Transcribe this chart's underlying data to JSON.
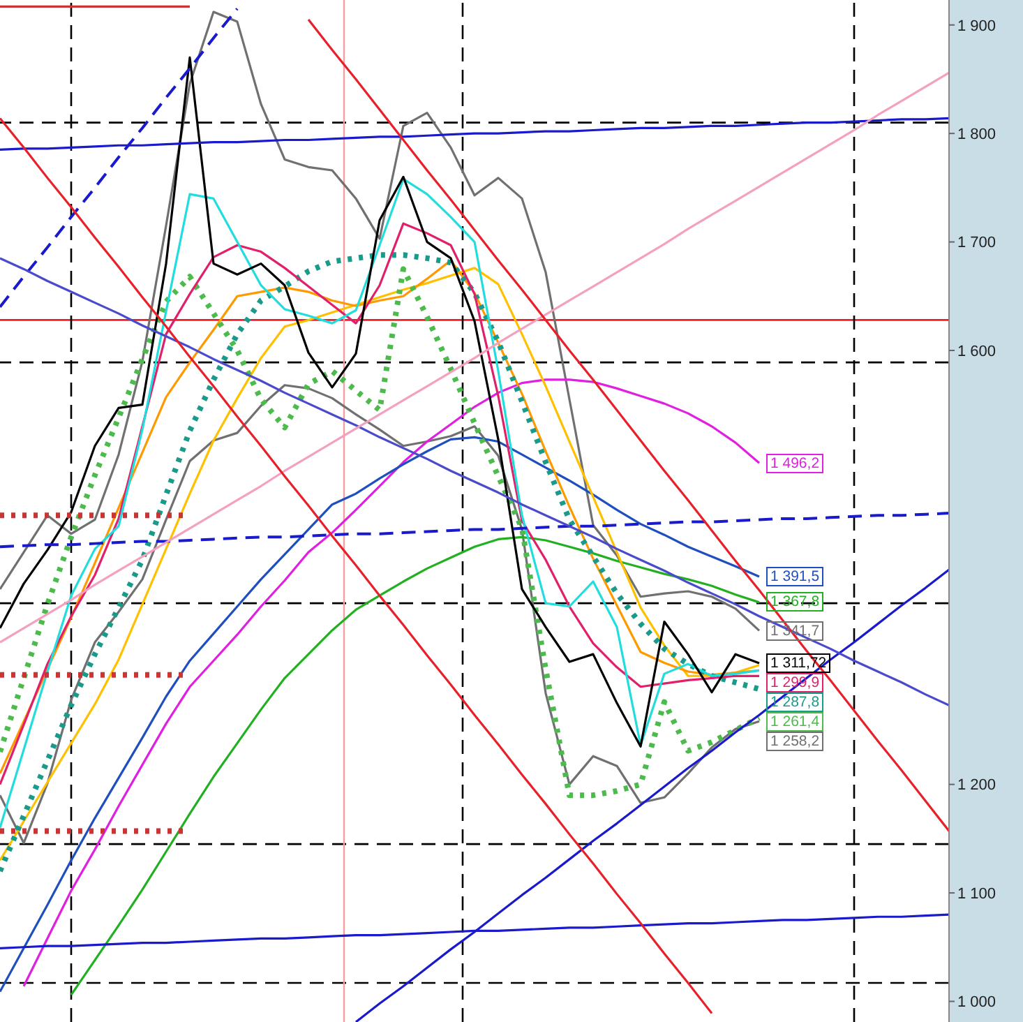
{
  "chart_data": {
    "type": "line",
    "categories": [
      null,
      null,
      null,
      null,
      null,
      null,
      null,
      null,
      null,
      null,
      null,
      null,
      null,
      null,
      null,
      null,
      null,
      null,
      null,
      null,
      null,
      null,
      null,
      null,
      null,
      null,
      null,
      null,
      null,
      null,
      null,
      null,
      null,
      null,
      null,
      null,
      null,
      null,
      null,
      null,
      null
    ],
    "ylim": [
      981,
      1923
    ],
    "yticks": [
      {
        "value": 1000,
        "label": "1 000"
      },
      {
        "value": 1100,
        "label": "1 100"
      },
      {
        "value": 1200,
        "label": "1 200"
      },
      {
        "value": 1600,
        "label": "1 600"
      },
      {
        "value": 1700,
        "label": "1 700"
      },
      {
        "value": 1800,
        "label": "1 800"
      },
      {
        "value": 1900,
        "label": "1 900"
      }
    ],
    "tick_labels": "y",
    "series": [
      {
        "color": "#707070",
        "values": [
          1380,
          1414,
          1448,
          1431,
          1444,
          1504,
          1590,
          1715,
          1846,
          1912,
          1903,
          1827,
          1776,
          1769,
          1766,
          1740,
          1703,
          1807,
          1819,
          1787,
          1743,
          1759,
          1740,
          1672,
          1555,
          1439,
          1411,
          1373,
          1376,
          1378,
          1373,
          1362,
          1341.7,
          null,
          null,
          null,
          null,
          null,
          null,
          null,
          null
        ],
        "value_labels": [
          null,
          null,
          null,
          null,
          null,
          null,
          null,
          null,
          null,
          null,
          null,
          null,
          null,
          null,
          null,
          null,
          null,
          null,
          null,
          null,
          null,
          null,
          null,
          null,
          null,
          null,
          null,
          null,
          null,
          null,
          null,
          null,
          "1 341,7",
          null,
          null,
          null,
          null,
          null,
          null,
          null,
          null
        ]
      },
      {
        "color": "#707070",
        "values": [
          1190,
          1146,
          1201,
          1278,
          1331,
          1359,
          1389,
          1444,
          1498,
          1517,
          1524,
          1549,
          1568,
          1565,
          1556,
          1541,
          1527,
          1512,
          1516,
          1521,
          1530,
          1503,
          1435,
          1284,
          1200,
          1226,
          1217,
          1183,
          1188,
          1210,
          1234,
          1251,
          1258.2,
          null,
          null,
          null,
          null,
          null,
          null,
          null,
          null
        ],
        "value_labels": [
          null,
          null,
          null,
          null,
          null,
          null,
          null,
          null,
          null,
          null,
          null,
          null,
          null,
          null,
          null,
          null,
          null,
          null,
          null,
          null,
          null,
          null,
          null,
          null,
          null,
          null,
          null,
          null,
          null,
          null,
          null,
          null,
          "1 258,2",
          null,
          null,
          null,
          null,
          null,
          null,
          null,
          null
        ]
      },
      {
        "color": "#e020e0",
        "values": [
          null,
          1014,
          1058,
          1102,
          1140,
          1180,
          1218,
          1256,
          1290,
          1314,
          1338,
          1364,
          1388,
          1414,
          1432,
          1453,
          1475,
          1497,
          1516,
          1532,
          1548,
          1561,
          1570,
          1573,
          1573,
          1571,
          1565,
          1558,
          1551,
          1542,
          1530,
          1515,
          1496.2,
          null,
          null,
          null,
          null,
          null,
          null,
          null,
          null
        ],
        "value_labels": [
          null,
          null,
          null,
          null,
          null,
          null,
          null,
          null,
          null,
          null,
          null,
          null,
          null,
          null,
          null,
          null,
          null,
          null,
          null,
          null,
          null,
          null,
          null,
          null,
          null,
          null,
          null,
          null,
          null,
          null,
          null,
          null,
          "1 496,2",
          null,
          null,
          null,
          null,
          null,
          null,
          null,
          null
        ]
      },
      {
        "color": "#1f4fbf",
        "values": [
          1009,
          1049,
          1089,
          1130,
          1169,
          1206,
          1243,
          1281,
          1314,
          1339,
          1364,
          1389,
          1412,
          1435,
          1458,
          1468,
          1482,
          1495,
          1507,
          1518,
          1520,
          1516,
          1504,
          1492,
          1480,
          1467,
          1453,
          1440,
          1430,
          1419,
          1410,
          1401,
          1391.5,
          null,
          null,
          null,
          null,
          null,
          null,
          null,
          null
        ],
        "value_labels": [
          null,
          null,
          null,
          null,
          null,
          null,
          null,
          null,
          null,
          null,
          null,
          null,
          null,
          null,
          null,
          null,
          null,
          null,
          null,
          null,
          null,
          null,
          null,
          null,
          null,
          null,
          null,
          null,
          null,
          null,
          null,
          null,
          "1 391,5",
          null,
          null,
          null,
          null,
          null,
          null,
          null,
          null
        ]
      },
      {
        "color": "#22b022",
        "values": [
          null,
          null,
          null,
          1006,
          1038,
          1070,
          1103,
          1138,
          1173,
          1207,
          1238,
          1269,
          1298,
          1320,
          1342,
          1361,
          1374,
          1387,
          1399,
          1409,
          1419,
          1426,
          1428,
          1425,
          1419,
          1413,
          1406,
          1400,
          1394,
          1389,
          1383,
          1375,
          1367.8,
          null,
          null,
          null,
          null,
          null,
          null,
          null,
          null
        ],
        "value_labels": [
          null,
          null,
          null,
          null,
          null,
          null,
          null,
          null,
          null,
          null,
          null,
          null,
          null,
          null,
          null,
          null,
          null,
          null,
          null,
          null,
          null,
          null,
          null,
          null,
          null,
          null,
          null,
          null,
          null,
          null,
          null,
          null,
          "1 367,8",
          null,
          null,
          null,
          null,
          null,
          null,
          null,
          null
        ]
      },
      {
        "color": "#ffc000",
        "values": [
          1130,
          1166,
          1202,
          1238,
          1274,
          1315,
          1366,
          1417,
          1468,
          1517,
          1556,
          1593,
          1622,
          1628,
          1635,
          1642,
          1649,
          1656,
          1662,
          1669,
          1676,
          1661,
          1615,
          1567,
          1516,
          1465,
          1414,
          1363,
          1328,
          1300,
          1300,
          1303,
          1310,
          null,
          null,
          null,
          null,
          null,
          null,
          null,
          null
        ]
      },
      {
        "color": "#ff9900",
        "values": [
          1210,
          1258,
          1306,
          1354,
          1404,
          1455,
          1506,
          1557,
          1589,
          1619,
          1650,
          1654,
          1658,
          1654,
          1646,
          1641,
          1646,
          1650,
          1666,
          1683,
          1653,
          1607,
          1560,
          1507,
          1456,
          1408,
          1365,
          1322,
          1312,
          1304,
          1301,
          1303,
          1305,
          null,
          null,
          null,
          null,
          null,
          null,
          null,
          null
        ]
      },
      {
        "color": "#1a9a8a",
        "line_style": "dotted",
        "values": [
          1120,
          1171,
          1222,
          1273,
          1320,
          1363,
          1407,
          1467,
          1526,
          1573,
          1615,
          1646,
          1659,
          1673,
          1682,
          1685,
          1688,
          1688,
          1685,
          1681,
          1653,
          1608,
          1553,
          1497,
          1444,
          1410,
          1376,
          1348,
          1325,
          1311,
          1300,
          1294,
          1287.8,
          null,
          null,
          null,
          null,
          null,
          null,
          null,
          null
        ],
        "value_labels": [
          null,
          null,
          null,
          null,
          null,
          null,
          null,
          null,
          null,
          null,
          null,
          null,
          null,
          null,
          null,
          null,
          null,
          null,
          null,
          null,
          null,
          null,
          null,
          null,
          null,
          null,
          null,
          null,
          null,
          null,
          null,
          null,
          "1 287,8",
          null,
          null,
          null,
          null,
          null,
          null,
          null,
          null
        ]
      },
      {
        "color": "#4cbb4c",
        "line_style": "dotted",
        "values": [
          1230,
          1298,
          1366,
          1428,
          1485,
          1538,
          1592,
          1645,
          1668,
          1634,
          1600,
          1555,
          1529,
          1569,
          1581,
          1563,
          1545,
          1675,
          1631,
          1583,
          1533,
          1484,
          1436,
          1306,
          1190,
          1190,
          1194,
          1200,
          1276,
          1231,
          1239,
          1250,
          1261.4,
          null,
          null,
          null,
          null,
          null,
          null,
          null,
          null
        ],
        "value_labels": [
          null,
          null,
          null,
          null,
          null,
          null,
          null,
          null,
          null,
          null,
          null,
          null,
          null,
          null,
          null,
          null,
          null,
          null,
          null,
          null,
          null,
          null,
          null,
          null,
          null,
          null,
          null,
          null,
          null,
          null,
          null,
          null,
          "1 261,4",
          null,
          null,
          null,
          null,
          null,
          null,
          null,
          null
        ]
      },
      {
        "color": "#e0206a",
        "values": [
          1200,
          1255,
          1311,
          1355,
          1393,
          1445,
          1530,
          1615,
          1652,
          1686,
          1697,
          1691,
          1676,
          1659,
          1642,
          1625,
          1660,
          1717,
          1708,
          1697,
          1652,
          1558,
          1443,
          1407,
          1364,
          1330,
          1308,
          1290,
          1293,
          1296,
          1298,
          1300,
          1299.9,
          null,
          null,
          null,
          null,
          null,
          null,
          null,
          null
        ],
        "value_labels": [
          null,
          null,
          null,
          null,
          null,
          null,
          null,
          null,
          null,
          null,
          null,
          null,
          null,
          null,
          null,
          null,
          null,
          null,
          null,
          null,
          null,
          null,
          null,
          null,
          null,
          null,
          null,
          null,
          null,
          null,
          null,
          null,
          "1 299,9",
          null,
          null,
          null,
          null,
          null,
          null,
          null,
          null
        ]
      },
      {
        "color": "#22dddd",
        "values": [
          1160,
          1232,
          1304,
          1374,
          1417,
          1438,
          1527,
          1636,
          1744,
          1740,
          1700,
          1660,
          1638,
          1632,
          1625,
          1637,
          1697,
          1758,
          1744,
          1723,
          1700,
          1581,
          1448,
          1367,
          1364,
          1387,
          1345,
          1236,
          1302,
          1311,
          1300,
          1302,
          1305,
          null,
          null,
          null,
          null,
          null,
          null,
          null,
          null
        ]
      },
      {
        "color": "#000000",
        "values": [
          1344,
          1385,
          1416,
          1451,
          1512,
          1547,
          1550,
          1680,
          1870,
          1680,
          1670,
          1680,
          1660,
          1598,
          1566,
          1597,
          1720,
          1760,
          1700,
          1685,
          1627,
          1518,
          1380,
          1345,
          1313,
          1320,
          1275,
          1235,
          1350,
          1320,
          1285,
          1320,
          1311.72,
          null,
          null,
          null,
          null,
          null,
          null,
          null,
          null
        ],
        "value_labels": [
          null,
          null,
          null,
          null,
          null,
          null,
          null,
          null,
          null,
          null,
          null,
          null,
          null,
          null,
          null,
          null,
          null,
          null,
          null,
          null,
          null,
          null,
          null,
          null,
          null,
          null,
          null,
          null,
          null,
          null,
          null,
          null,
          "1 311,72",
          null,
          null,
          null,
          null,
          null,
          null,
          null,
          null
        ]
      },
      {
        "color": "#1a1acd",
        "values": [
          1785,
          1786,
          1786,
          1787,
          1788,
          1789,
          1789,
          1790,
          1791,
          1792,
          1792,
          1793,
          1794,
          1794,
          1795,
          1796,
          1797,
          1797,
          1798,
          1799,
          1800,
          1800,
          1801,
          1802,
          1802,
          1803,
          1804,
          1805,
          1805,
          1806,
          1807,
          1807,
          1808,
          1809,
          1810,
          1810,
          1811,
          1812,
          1813,
          1813,
          1814
        ]
      },
      {
        "color": "#1a1acd",
        "line_style": "dashed",
        "values": [
          1419,
          1420,
          1421,
          1421,
          1422,
          1423,
          1424,
          1424,
          1425,
          1426,
          1427,
          1428,
          1428,
          1429,
          1430,
          1431,
          1431,
          1432,
          1433,
          1434,
          1435,
          1435,
          1436,
          1437,
          1438,
          1438,
          1439,
          1440,
          1441,
          1442,
          1442,
          1443,
          1444,
          1445,
          1445,
          1446,
          1447,
          1448,
          1448,
          1449,
          1450
        ]
      },
      {
        "color": "#1a1acd",
        "values": [
          1049,
          1050,
          1051,
          1051,
          1052,
          1053,
          1054,
          1054,
          1055,
          1056,
          1057,
          1058,
          1058,
          1059,
          1060,
          1061,
          1061,
          1062,
          1063,
          1064,
          1065,
          1065,
          1066,
          1067,
          1068,
          1068,
          1069,
          1070,
          1071,
          1072,
          1072,
          1073,
          1074,
          1075,
          1075,
          1076,
          1077,
          1078,
          1078,
          1079,
          1080
        ]
      },
      {
        "color": "#1a1acd",
        "values": [
          null,
          null,
          null,
          null,
          null,
          null,
          null,
          null,
          null,
          null,
          null,
          null,
          null,
          null,
          null,
          981,
          998,
          1014,
          1031,
          1048,
          1064,
          1081,
          1098,
          1114,
          1131,
          1148,
          1164,
          1181,
          1198,
          1215,
          1231,
          1248,
          1264,
          1281,
          1298,
          1315,
          1331,
          1348,
          1365,
          1381,
          1398
        ]
      },
      {
        "color": "#1a1acd",
        "line_style": "dashed",
        "values": [
          1640,
          1668,
          1695,
          1723,
          1750,
          1778,
          1805,
          1833,
          1860,
          1888,
          1915,
          null,
          null,
          null,
          null,
          null,
          null,
          null,
          null,
          null,
          null,
          null,
          null,
          null,
          null,
          null,
          null,
          null,
          null,
          null,
          null,
          null,
          null,
          null,
          null,
          null,
          null,
          null,
          null,
          null,
          null
        ]
      },
      {
        "color": "#4a4acc",
        "values": [
          1685,
          1675,
          1664,
          1654,
          1644,
          1634,
          1623,
          1613,
          1603,
          1592,
          1582,
          1572,
          1561,
          1551,
          1541,
          1531,
          1520,
          1510,
          1500,
          1489,
          1479,
          1469,
          1458,
          1448,
          1438,
          1428,
          1417,
          1407,
          1397,
          1386,
          1376,
          1366,
          1355,
          1345,
          1335,
          1325,
          1314,
          1304,
          1294,
          1283,
          1273
        ]
      },
      {
        "color": "#f4a0c0",
        "values": [
          1331,
          1344,
          1357,
          1370,
          1384,
          1397,
          1410,
          1423,
          1436,
          1449,
          1462,
          1475,
          1489,
          1502,
          1515,
          1528,
          1541,
          1554,
          1567,
          1580,
          1593,
          1607,
          1620,
          1633,
          1646,
          1659,
          1672,
          1685,
          1698,
          1712,
          1725,
          1738,
          1751,
          1764,
          1777,
          1790,
          1803,
          1817,
          1830,
          1843,
          1856
        ]
      },
      {
        "color": "#e8202a",
        "values": [
          null,
          null,
          null,
          null,
          null,
          null,
          null,
          null,
          null,
          null,
          null,
          null,
          null,
          1905,
          1877,
          1850,
          1822,
          1794,
          1766,
          1739,
          1711,
          1683,
          1656,
          1628,
          1600,
          1573,
          1545,
          1517,
          1489,
          1462,
          1434,
          1406,
          1379,
          1351,
          1323,
          1296,
          1268,
          1240,
          1213,
          1185,
          1157
        ]
      },
      {
        "color": "#e8202a",
        "values": [
          1814,
          1787,
          1759,
          1732,
          1704,
          1677,
          1649,
          1622,
          1594,
          1567,
          1539,
          1512,
          1484,
          1457,
          1429,
          1402,
          1374,
          1347,
          1319,
          1292,
          1264,
          1237,
          1209,
          1182,
          1154,
          1127,
          1099,
          1072,
          1044,
          1017,
          989,
          null,
          null,
          null,
          null,
          null,
          null,
          null,
          null,
          null,
          null
        ]
      },
      {
        "color": "#cc3333",
        "values": [
          1917,
          1917,
          1917,
          1917,
          1917,
          1917,
          1917,
          1917,
          1917,
          null,
          null,
          null,
          null,
          null,
          null,
          null,
          null,
          null,
          null,
          null,
          null,
          null,
          null,
          null,
          null,
          null,
          null,
          null,
          null,
          null,
          null,
          null,
          null,
          null,
          null,
          null,
          null,
          null,
          null,
          null,
          null
        ]
      },
      {
        "color": "#cc3333",
        "line_style": "dotted",
        "values": [
          1448,
          1448,
          1448,
          1448,
          1448,
          1448,
          1448,
          1448,
          1448,
          null,
          null,
          null,
          null,
          null,
          null,
          null,
          null,
          null,
          null,
          null,
          null,
          null,
          null,
          null,
          null,
          null,
          null,
          null,
          null,
          null,
          null,
          null,
          null,
          null,
          null,
          null,
          null,
          null,
          null,
          null,
          null
        ]
      },
      {
        "color": "#cc3333",
        "line_style": "dotted",
        "values": [
          1301,
          1301,
          1301,
          1301,
          1301,
          1301,
          1301,
          1301,
          1301,
          null,
          null,
          null,
          null,
          null,
          null,
          null,
          null,
          null,
          null,
          null,
          null,
          null,
          null,
          null,
          null,
          null,
          null,
          null,
          null,
          null,
          null,
          null,
          null,
          null,
          null,
          null,
          null,
          null,
          null,
          null,
          null
        ]
      },
      {
        "color": "#cc3333",
        "line_style": "dotted",
        "values": [
          1157,
          1157,
          1157,
          1157,
          1157,
          1157,
          1157,
          1157,
          1157,
          null,
          null,
          null,
          null,
          null,
          null,
          null,
          null,
          null,
          null,
          null,
          null,
          null,
          null,
          null,
          null,
          null,
          null,
          null,
          null,
          null,
          null,
          null,
          null,
          null,
          null,
          null,
          null,
          null,
          null,
          null,
          null
        ]
      }
    ],
    "ref_lines": [
      {
        "axis": "y",
        "value": 1628,
        "color": "#e8202a",
        "line_style": "solid"
      },
      {
        "axis": "y",
        "value": 1810,
        "color": "#000000",
        "line_style": "dashed"
      },
      {
        "axis": "y",
        "value": 1589,
        "color": "#000000",
        "line_style": "dashed"
      },
      {
        "axis": "y",
        "value": 1367,
        "color": "#000000",
        "line_style": "dashed"
      },
      {
        "axis": "y",
        "value": 1145,
        "color": "#000000",
        "line_style": "dashed"
      },
      {
        "axis": "y",
        "value": 1017,
        "color": "#000000",
        "line_style": "dashed"
      }
    ]
  }
}
